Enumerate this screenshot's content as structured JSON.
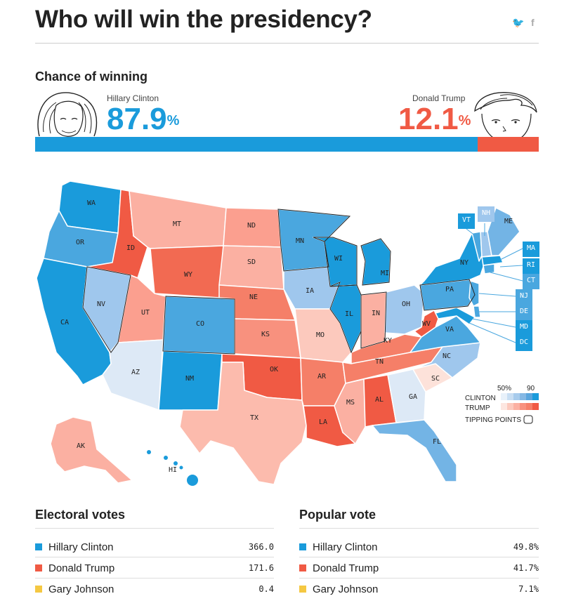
{
  "header": {
    "title": "Who will win the presidency?",
    "twitter_glyph": "🐦",
    "facebook_glyph": "f"
  },
  "chance": {
    "heading": "Chance of winning",
    "clinton": {
      "name": "Hillary Clinton",
      "value": "87.9",
      "unit": "%",
      "share": 0.879,
      "color": "#1a9bdb"
    },
    "trump": {
      "name": "Donald Trump",
      "value": "12.1",
      "unit": "%",
      "share": 0.121,
      "color": "#f05a44"
    }
  },
  "map": {
    "states": [
      "WA",
      "OR",
      "CA",
      "NV",
      "ID",
      "MT",
      "WY",
      "UT",
      "AZ",
      "CO",
      "NM",
      "ND",
      "SD",
      "NE",
      "KS",
      "OK",
      "TX",
      "MN",
      "IA",
      "MO",
      "AR",
      "LA",
      "WI",
      "IL",
      "MI",
      "IN",
      "OH",
      "KY",
      "TN",
      "MS",
      "AL",
      "GA",
      "FL",
      "SC",
      "NC",
      "VA",
      "WV",
      "PA",
      "NY",
      "VT",
      "NH",
      "ME",
      "MA",
      "RI",
      "CT",
      "NJ",
      "DE",
      "MD",
      "DC",
      "AK",
      "HI"
    ],
    "legend": {
      "low": "50%",
      "high": "90",
      "clinton": "CLINTON",
      "trump": "TRUMP",
      "tipping": "TIPPING POINTS"
    }
  },
  "electoral": {
    "heading": "Electoral votes",
    "rows": [
      {
        "name": "Hillary Clinton",
        "value": "366.0",
        "color": "#1a9bdb"
      },
      {
        "name": "Donald Trump",
        "value": "171.6",
        "color": "#f05a44"
      },
      {
        "name": "Gary Johnson",
        "value": "0.4",
        "color": "#f5c842"
      }
    ]
  },
  "popular": {
    "heading": "Popular vote",
    "rows": [
      {
        "name": "Hillary Clinton",
        "value": "49.8%",
        "color": "#1a9bdb"
      },
      {
        "name": "Donald Trump",
        "value": "41.7%",
        "color": "#f05a44"
      },
      {
        "name": "Gary Johnson",
        "value": "7.1%",
        "color": "#f5c842"
      }
    ]
  }
}
